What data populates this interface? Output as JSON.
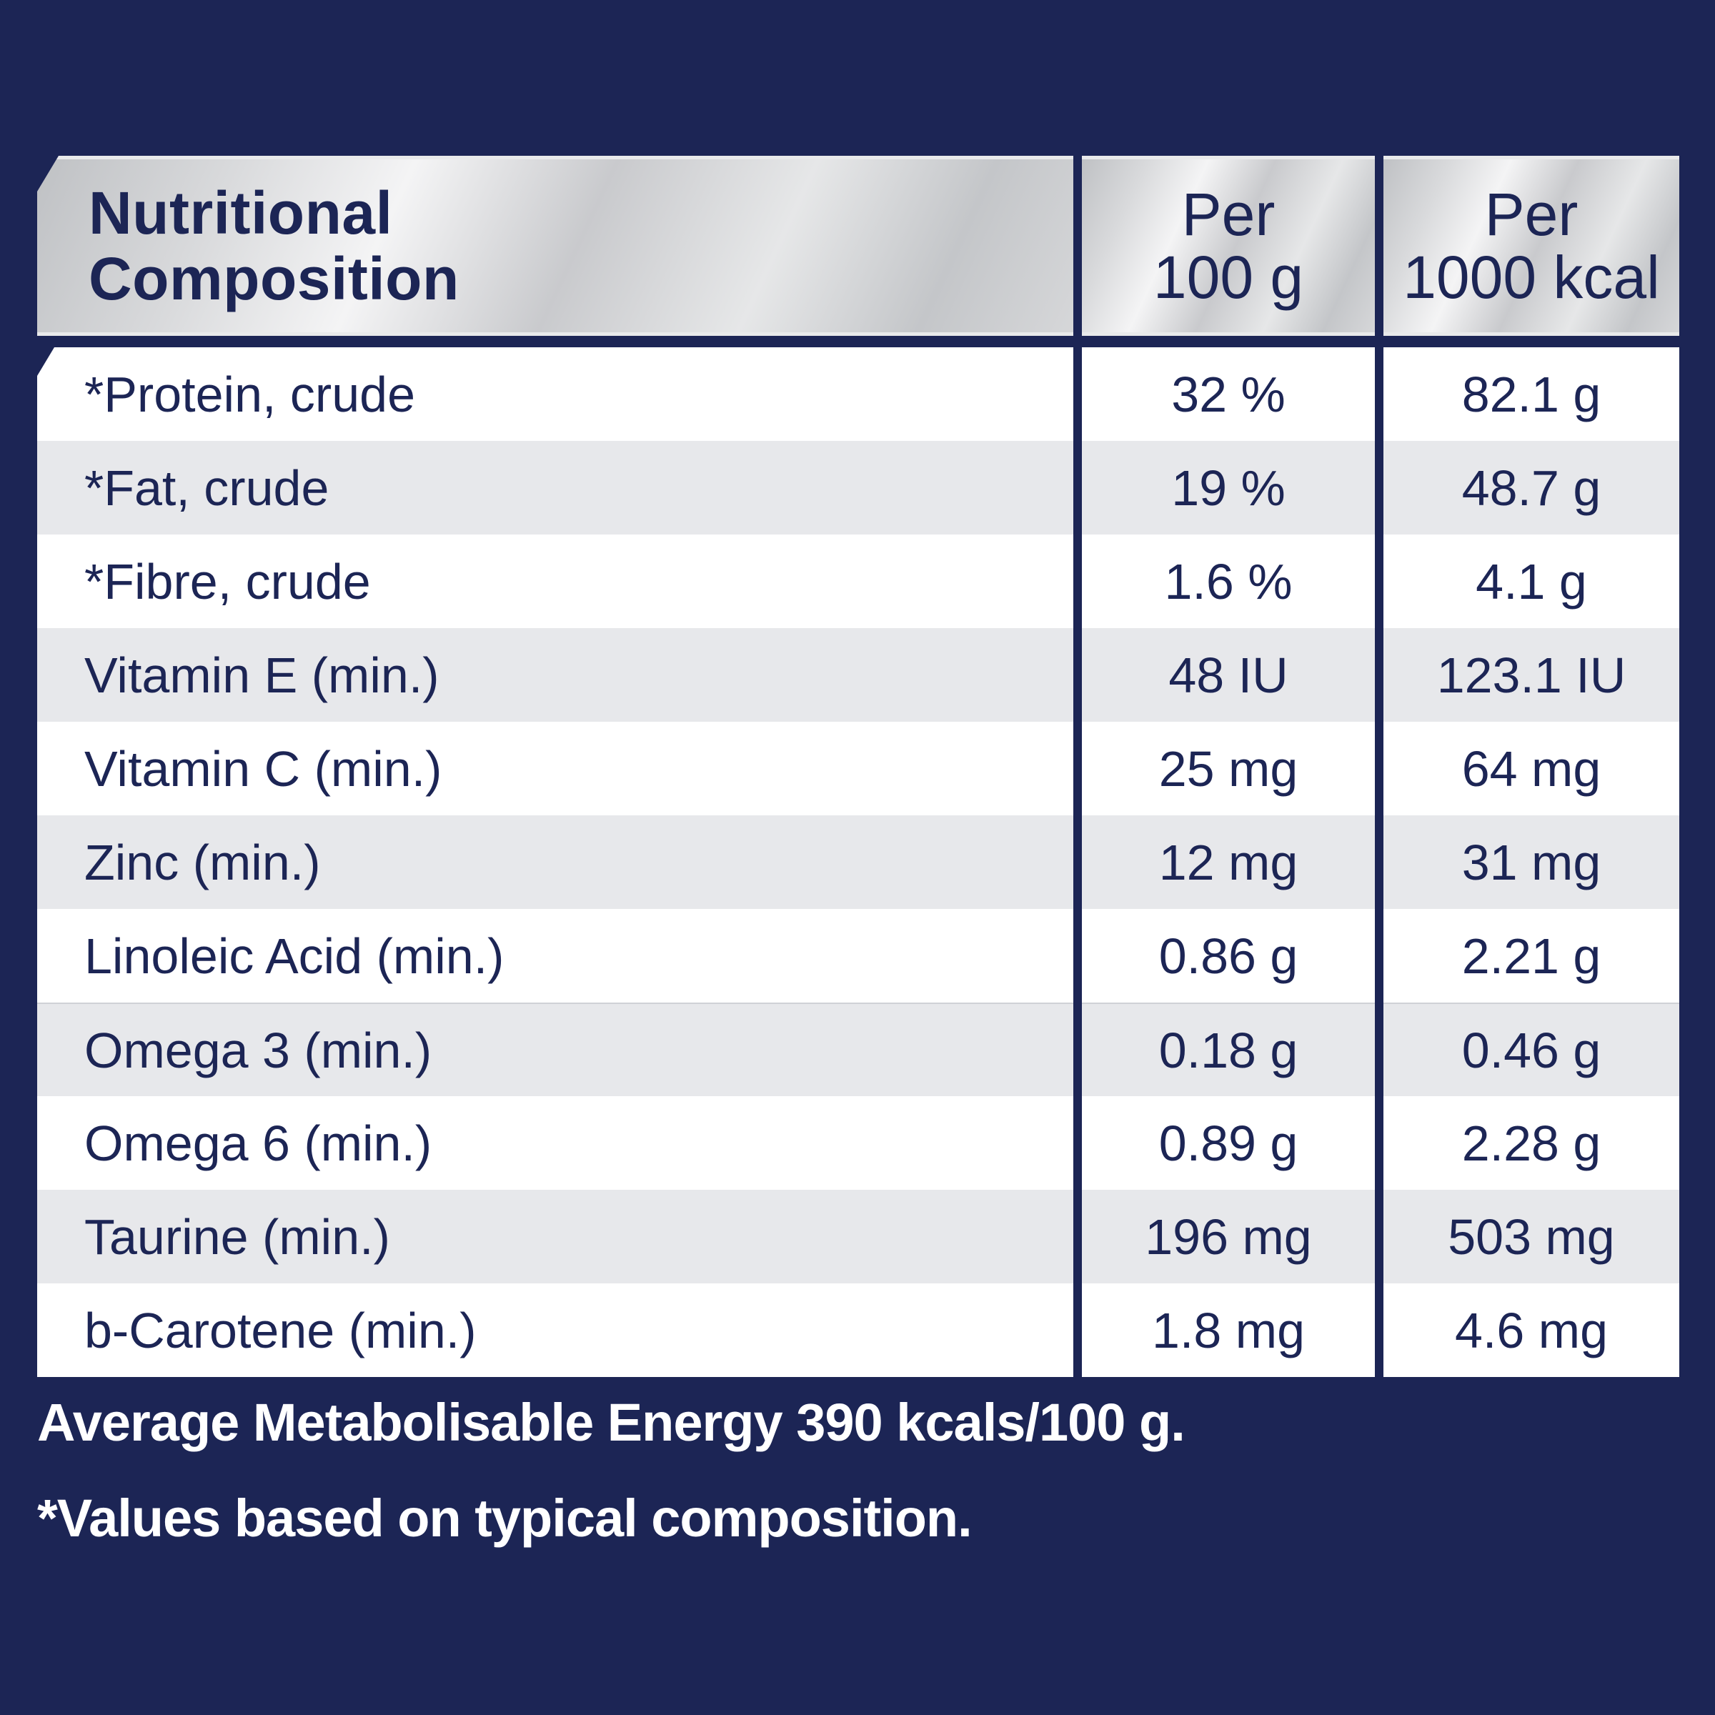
{
  "table": {
    "header": {
      "label": "Nutritional\nComposition",
      "col1": "Per\n100 g",
      "col2": "Per\n1000 kcal"
    },
    "rows": [
      {
        "name": "*Protein, crude",
        "per100g": "32 %",
        "per1000kcal": "82.1 g"
      },
      {
        "name": "*Fat, crude",
        "per100g": "19 %",
        "per1000kcal": "48.7 g"
      },
      {
        "name": "*Fibre, crude",
        "per100g": "1.6 %",
        "per1000kcal": "4.1 g"
      },
      {
        "name": "Vitamin E (min.)",
        "per100g": "48 IU",
        "per1000kcal": "123.1 IU"
      },
      {
        "name": "Vitamin C (min.)",
        "per100g": "25 mg",
        "per1000kcal": "64 mg"
      },
      {
        "name": "Zinc (min.)",
        "per100g": "12 mg",
        "per1000kcal": "31 mg"
      },
      {
        "name": "Linoleic Acid (min.)",
        "per100g": "0.86 g",
        "per1000kcal": "2.21 g"
      },
      {
        "name": "Omega 3 (min.)",
        "per100g": "0.18 g",
        "per1000kcal": "0.46 g"
      },
      {
        "name": "Omega 6 (min.)",
        "per100g": "0.89 g",
        "per1000kcal": "2.28 g"
      },
      {
        "name": "Taurine (min.)",
        "per100g": "196 mg",
        "per1000kcal": "503 mg"
      },
      {
        "name": "b-Carotene (min.)",
        "per100g": "1.8 mg",
        "per1000kcal": "4.6 mg"
      }
    ]
  },
  "footer": {
    "energy": "Average Metabolisable Energy 390 kcals/100 g.",
    "note": "*Values based on typical composition."
  },
  "colors": {
    "background": "#1c2555",
    "text": "#1c2555",
    "row_alt": "#e7e8eb",
    "header_silver": "#d9dadc"
  }
}
